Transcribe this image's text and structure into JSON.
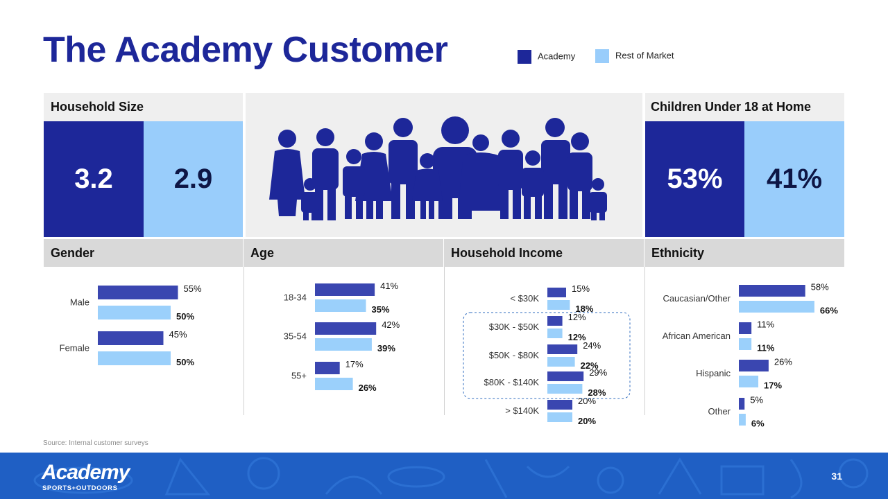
{
  "title": "The Academy Customer",
  "legend": {
    "academy": "Academy",
    "rest": "Rest of Market"
  },
  "colors": {
    "academy": "#3a46b0",
    "rest": "#9bd0fb",
    "brand": "#1d2799",
    "footer": "#1f5fc4"
  },
  "household_size": {
    "label": "Household Size",
    "academy": "3.2",
    "rest": "2.9"
  },
  "children": {
    "label": "Children Under 18 at Home",
    "academy": "53%",
    "rest": "41%"
  },
  "source": "Source: Internal customer surveys",
  "footer": {
    "logo": "Academy",
    "logo_sub": "SPORTS+OUTDOORS",
    "page": "31"
  },
  "chart_data": [
    {
      "type": "bar",
      "title": "Gender",
      "categories": [
        "Male",
        "Female"
      ],
      "series": [
        {
          "name": "Academy",
          "values": [
            55,
            45
          ]
        },
        {
          "name": "Rest of Market",
          "values": [
            50,
            50
          ]
        }
      ],
      "labels": [
        [
          "55%",
          "45%"
        ],
        [
          "50%",
          "50%"
        ]
      ]
    },
    {
      "type": "bar",
      "title": "Age",
      "categories": [
        "18-34",
        "35-54",
        "55+"
      ],
      "series": [
        {
          "name": "Academy",
          "values": [
            41,
            42,
            17
          ]
        },
        {
          "name": "Rest of Market",
          "values": [
            35,
            39,
            26
          ]
        }
      ],
      "labels": [
        [
          "41%",
          "42%",
          "17%"
        ],
        [
          "35%",
          "39%",
          "26%"
        ]
      ]
    },
    {
      "type": "bar",
      "title": "Household Income",
      "categories": [
        "< $30K",
        "$30K - $50K",
        "$50K - $80K",
        "$80K - $140K",
        "> $140K"
      ],
      "series": [
        {
          "name": "Academy",
          "values": [
            15,
            12,
            24,
            29,
            20
          ]
        },
        {
          "name": "Rest of Market",
          "values": [
            18,
            12,
            22,
            28,
            20
          ]
        }
      ],
      "labels": [
        [
          "15%",
          "12%",
          "24%",
          "29%",
          "20%"
        ],
        [
          "18%",
          "12%",
          "22%",
          "28%",
          "20%"
        ]
      ]
    },
    {
      "type": "bar",
      "title": "Ethnicity",
      "categories": [
        "Caucasian/Other",
        "African American",
        "Hispanic",
        "Other"
      ],
      "series": [
        {
          "name": "Academy",
          "values": [
            58,
            11,
            26,
            5
          ]
        },
        {
          "name": "Rest of Market",
          "values": [
            66,
            11,
            17,
            6
          ]
        }
      ],
      "labels": [
        [
          "58%",
          "11%",
          "26%",
          "5%"
        ],
        [
          "66%",
          "11%",
          "17%",
          "6%"
        ]
      ]
    }
  ]
}
